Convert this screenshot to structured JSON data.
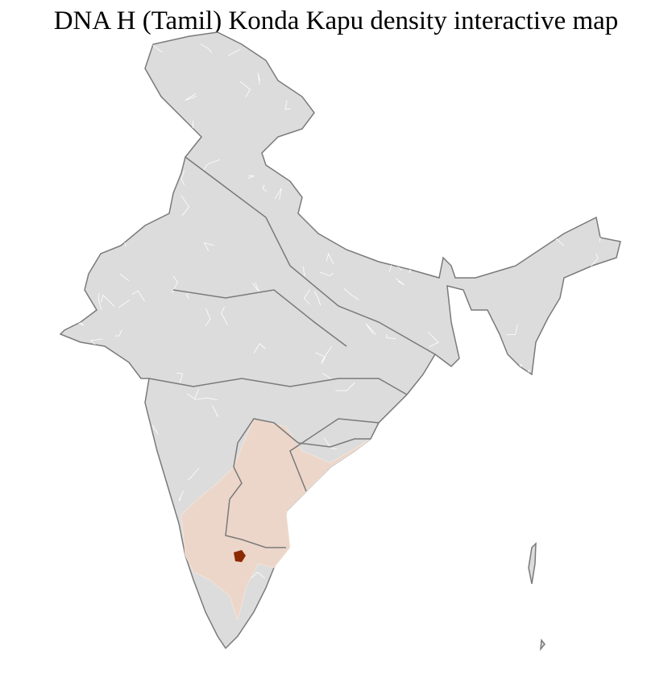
{
  "title": "DNA H (Tamil) Konda Kapu density interactive map",
  "colors": {
    "no_data": "#dcdcdc",
    "low_density": "#ecd6c9",
    "high_density": "#8b2a00",
    "state_border": "#7a7a7a",
    "district_border": "#ffffff"
  },
  "regions": [
    {
      "name": "low-density-region",
      "level": "low"
    },
    {
      "name": "high-density-district",
      "level": "high"
    }
  ]
}
